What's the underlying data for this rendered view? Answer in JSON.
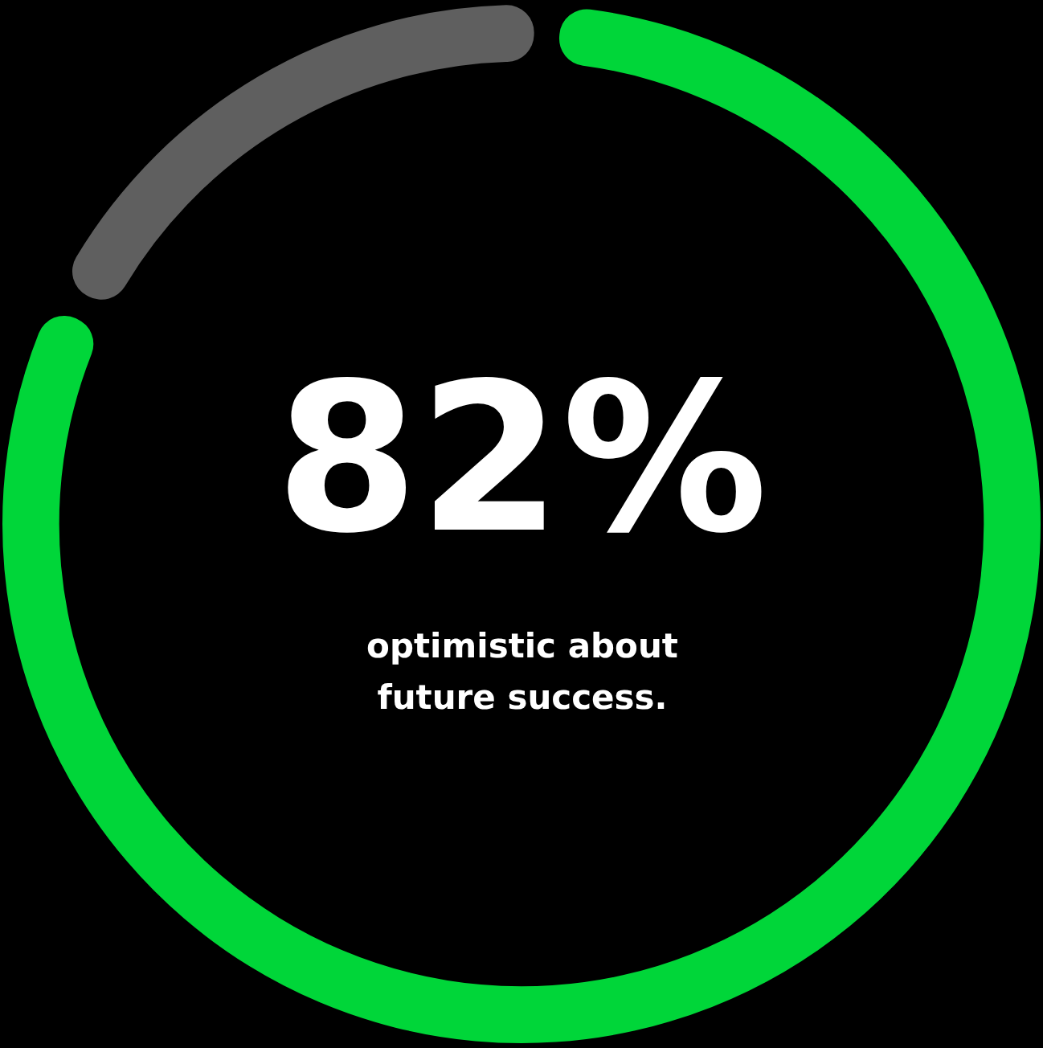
{
  "chart_data": {
    "type": "donut",
    "categories": [
      null,
      null
    ],
    "values": [
      82,
      18
    ],
    "colors": [
      "#00d639",
      "#5f5f5f"
    ],
    "value_labels": [
      "82%",
      null
    ],
    "annotations": [
      "optimistic about future success."
    ]
  }
}
